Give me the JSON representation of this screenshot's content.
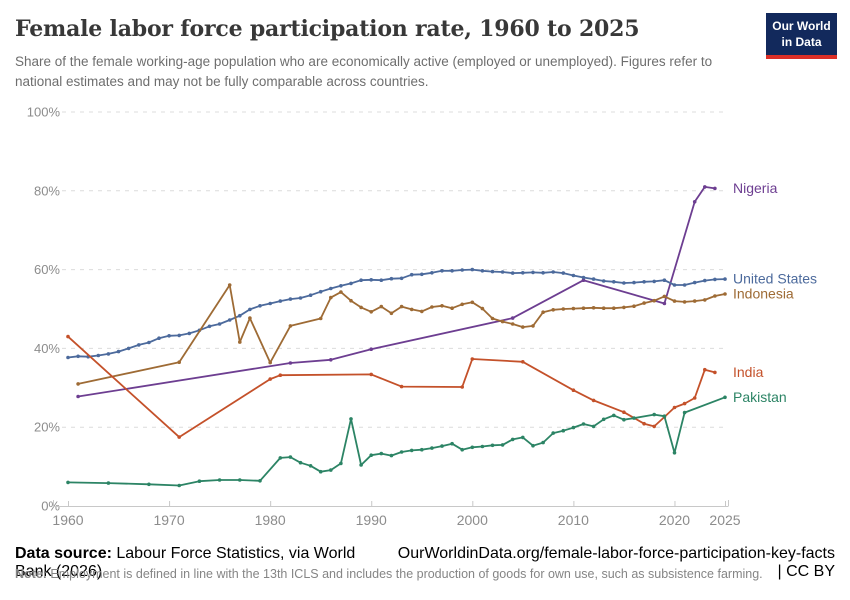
{
  "header": {
    "title": "Female labor force participation rate, 1960 to 2025",
    "subtitle": "Share of the female working-age population who are economically active (employed or unemployed). Figures refer to national estimates and may not be fully comparable across countries.",
    "logo": {
      "line1": "Our World",
      "line2": "in Data",
      "bg_color": "#12295C",
      "accent_color": "#DC2F27"
    }
  },
  "chart_data": {
    "type": "line",
    "title": "Female labor force participation rate, 1960 to 2025",
    "xlabel": "",
    "ylabel": "",
    "xlim": [
      1960,
      2025
    ],
    "ylim": [
      0,
      100
    ],
    "x_ticks": [
      1960,
      1970,
      1980,
      1990,
      2000,
      2010,
      2020,
      2025
    ],
    "y_ticks": [
      0,
      20,
      40,
      60,
      80,
      100
    ],
    "y_tick_suffix": "%",
    "grid": "horizontal-dashed",
    "legend_position": "right-edge-labels",
    "series": [
      {
        "name": "Nigeria",
        "color": "#6D3E91",
        "points": [
          [
            1961,
            27.8
          ],
          [
            1982,
            36.3
          ],
          [
            1986,
            37.1
          ],
          [
            1990,
            39.8
          ],
          [
            2004,
            47.7
          ],
          [
            2011,
            57.3
          ],
          [
            2019,
            51.4
          ],
          [
            2022,
            77.2
          ],
          [
            2023,
            81.0
          ],
          [
            2024,
            80.6
          ]
        ]
      },
      {
        "name": "United States",
        "color": "#4C6A9C",
        "points": [
          [
            1960,
            37.7
          ],
          [
            1961,
            38.0
          ],
          [
            1962,
            37.9
          ],
          [
            1963,
            38.2
          ],
          [
            1964,
            38.6
          ],
          [
            1965,
            39.2
          ],
          [
            1966,
            40.0
          ],
          [
            1967,
            40.9
          ],
          [
            1968,
            41.5
          ],
          [
            1969,
            42.6
          ],
          [
            1970,
            43.2
          ],
          [
            1971,
            43.3
          ],
          [
            1972,
            43.8
          ],
          [
            1973,
            44.6
          ],
          [
            1974,
            45.6
          ],
          [
            1975,
            46.2
          ],
          [
            1976,
            47.2
          ],
          [
            1977,
            48.3
          ],
          [
            1978,
            49.9
          ],
          [
            1979,
            50.8
          ],
          [
            1980,
            51.4
          ],
          [
            1981,
            52.0
          ],
          [
            1982,
            52.5
          ],
          [
            1983,
            52.8
          ],
          [
            1984,
            53.5
          ],
          [
            1985,
            54.4
          ],
          [
            1986,
            55.2
          ],
          [
            1987,
            55.9
          ],
          [
            1988,
            56.5
          ],
          [
            1989,
            57.3
          ],
          [
            1990,
            57.4
          ],
          [
            1991,
            57.3
          ],
          [
            1992,
            57.7
          ],
          [
            1993,
            57.8
          ],
          [
            1994,
            58.7
          ],
          [
            1995,
            58.8
          ],
          [
            1996,
            59.2
          ],
          [
            1997,
            59.7
          ],
          [
            1998,
            59.7
          ],
          [
            1999,
            59.9
          ],
          [
            2000,
            60.0
          ],
          [
            2001,
            59.7
          ],
          [
            2002,
            59.5
          ],
          [
            2003,
            59.4
          ],
          [
            2004,
            59.1
          ],
          [
            2005,
            59.2
          ],
          [
            2006,
            59.3
          ],
          [
            2007,
            59.2
          ],
          [
            2008,
            59.4
          ],
          [
            2009,
            59.1
          ],
          [
            2010,
            58.5
          ],
          [
            2011,
            58.0
          ],
          [
            2012,
            57.6
          ],
          [
            2013,
            57.1
          ],
          [
            2014,
            56.9
          ],
          [
            2015,
            56.6
          ],
          [
            2016,
            56.7
          ],
          [
            2017,
            56.9
          ],
          [
            2018,
            57.0
          ],
          [
            2019,
            57.3
          ],
          [
            2020,
            56.1
          ],
          [
            2021,
            56.1
          ],
          [
            2022,
            56.7
          ],
          [
            2023,
            57.2
          ],
          [
            2024,
            57.5
          ],
          [
            2025,
            57.6
          ]
        ]
      },
      {
        "name": "Indonesia",
        "color": "#9E6B35",
        "points": [
          [
            1961,
            31.0
          ],
          [
            1971,
            36.5
          ],
          [
            1976,
            56.1
          ],
          [
            1977,
            41.6
          ],
          [
            1978,
            47.7
          ],
          [
            1980,
            36.4
          ],
          [
            1982,
            45.7
          ],
          [
            1985,
            47.6
          ],
          [
            1986,
            52.9
          ],
          [
            1987,
            54.3
          ],
          [
            1988,
            52.1
          ],
          [
            1989,
            50.4
          ],
          [
            1990,
            49.3
          ],
          [
            1991,
            50.6
          ],
          [
            1992,
            48.9
          ],
          [
            1993,
            50.6
          ],
          [
            1994,
            49.9
          ],
          [
            1995,
            49.4
          ],
          [
            1996,
            50.5
          ],
          [
            1997,
            50.8
          ],
          [
            1998,
            50.2
          ],
          [
            1999,
            51.2
          ],
          [
            2000,
            51.7
          ],
          [
            2001,
            50.1
          ],
          [
            2002,
            47.6
          ],
          [
            2003,
            46.8
          ],
          [
            2004,
            46.2
          ],
          [
            2005,
            45.4
          ],
          [
            2006,
            45.7
          ],
          [
            2007,
            49.2
          ],
          [
            2008,
            49.8
          ],
          [
            2009,
            50.0
          ],
          [
            2010,
            50.1
          ],
          [
            2011,
            50.2
          ],
          [
            2012,
            50.3
          ],
          [
            2013,
            50.2
          ],
          [
            2014,
            50.2
          ],
          [
            2015,
            50.4
          ],
          [
            2016,
            50.7
          ],
          [
            2017,
            51.5
          ],
          [
            2018,
            52.1
          ],
          [
            2019,
            53.2
          ],
          [
            2020,
            52.0
          ],
          [
            2021,
            51.8
          ],
          [
            2022,
            52.0
          ],
          [
            2023,
            52.3
          ],
          [
            2024,
            53.3
          ],
          [
            2025,
            53.8
          ]
        ]
      },
      {
        "name": "India",
        "color": "#C4512A",
        "points": [
          [
            1960,
            43.0
          ],
          [
            1971,
            17.5
          ],
          [
            1980,
            32.2
          ],
          [
            1981,
            33.2
          ],
          [
            1990,
            33.4
          ],
          [
            1993,
            30.3
          ],
          [
            1999,
            30.2
          ],
          [
            2000,
            37.3
          ],
          [
            2005,
            36.6
          ],
          [
            2010,
            29.4
          ],
          [
            2012,
            26.8
          ],
          [
            2015,
            23.8
          ],
          [
            2017,
            20.9
          ],
          [
            2018,
            20.2
          ],
          [
            2019,
            22.6
          ],
          [
            2020,
            25.0
          ],
          [
            2021,
            26.0
          ],
          [
            2022,
            27.4
          ],
          [
            2023,
            34.6
          ],
          [
            2024,
            33.9
          ]
        ]
      },
      {
        "name": "Pakistan",
        "color": "#2C8465",
        "points": [
          [
            1960,
            6.0
          ],
          [
            1964,
            5.8
          ],
          [
            1968,
            5.5
          ],
          [
            1971,
            5.2
          ],
          [
            1973,
            6.3
          ],
          [
            1975,
            6.6
          ],
          [
            1977,
            6.6
          ],
          [
            1979,
            6.4
          ],
          [
            1981,
            12.2
          ],
          [
            1982,
            12.4
          ],
          [
            1983,
            11.0
          ],
          [
            1984,
            10.2
          ],
          [
            1985,
            8.7
          ],
          [
            1986,
            9.1
          ],
          [
            1987,
            10.8
          ],
          [
            1988,
            22.1
          ],
          [
            1989,
            10.4
          ],
          [
            1990,
            12.9
          ],
          [
            1991,
            13.3
          ],
          [
            1992,
            12.8
          ],
          [
            1993,
            13.7
          ],
          [
            1994,
            14.1
          ],
          [
            1995,
            14.3
          ],
          [
            1996,
            14.7
          ],
          [
            1997,
            15.2
          ],
          [
            1998,
            15.8
          ],
          [
            1999,
            14.3
          ],
          [
            2000,
            14.9
          ],
          [
            2001,
            15.1
          ],
          [
            2002,
            15.4
          ],
          [
            2003,
            15.5
          ],
          [
            2004,
            16.9
          ],
          [
            2005,
            17.4
          ],
          [
            2006,
            15.3
          ],
          [
            2007,
            16.1
          ],
          [
            2008,
            18.5
          ],
          [
            2009,
            19.1
          ],
          [
            2010,
            19.9
          ],
          [
            2011,
            20.8
          ],
          [
            2012,
            20.2
          ],
          [
            2013,
            22.0
          ],
          [
            2014,
            23.0
          ],
          [
            2015,
            21.9
          ],
          [
            2016,
            22.3
          ],
          [
            2018,
            23.2
          ],
          [
            2019,
            22.8
          ],
          [
            2020,
            13.5
          ],
          [
            2021,
            23.7
          ],
          [
            2025,
            27.6
          ]
        ]
      }
    ]
  },
  "footer": {
    "datasource_label": "Data source:",
    "datasource_text": " Labour Force Statistics, via World Bank (2026)",
    "url_text": "OurWorldinData.org/female-labor-force-participation-key-facts | CC BY",
    "note_label": "Note:",
    "note_text": " Employment is defined in line with the 13th ICLS and includes the production of goods for own use, such as subsistence farming."
  }
}
